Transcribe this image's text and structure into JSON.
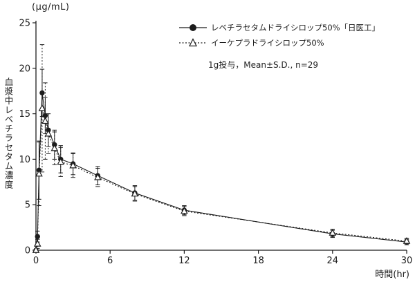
{
  "unit_label": "(μg/mL)",
  "x_axis": {
    "title": "時間(hr)"
  },
  "y_axis": {
    "title": "血漿中レベチラセタム濃度"
  },
  "legend": {
    "items": [
      {
        "label": "レベチラセタムドライシロップ50%「日医工」",
        "marker": "filled-circle",
        "line": "solid"
      },
      {
        "label": "イーケプラドライシロップ50%",
        "marker": "open-triangle",
        "line": "dotted"
      }
    ],
    "note": "1g投与，Mean±S.D., n=29"
  },
  "colors": {
    "ink": "#1c1c1c",
    "bg": "#ffffff"
  },
  "chart_data": {
    "type": "line",
    "title": "",
    "xlabel": "時間(hr)",
    "ylabel": "血漿中レベチラセタム濃度 (μg/mL)",
    "x": [
      0,
      0.125,
      0.25,
      0.5,
      0.75,
      1,
      1.5,
      2,
      3,
      5,
      8,
      12,
      24,
      30
    ],
    "xlim": [
      0,
      30
    ],
    "ylim": [
      0,
      25
    ],
    "xticks": [
      0,
      6,
      12,
      18,
      24,
      30
    ],
    "yticks": [
      0,
      5,
      10,
      15,
      20,
      25
    ],
    "grid": false,
    "legend_position": "top-center-inside",
    "annotation": "1g投与，Mean±S.D., n=29",
    "error_bars": "S.D.",
    "n": 29,
    "series": [
      {
        "name": "レベチラセタムドライシロップ50%「日医工」",
        "marker": "filled-circle",
        "line": "solid",
        "values": [
          0,
          1.5,
          8.8,
          17.3,
          14.8,
          13.2,
          11.6,
          10.0,
          9.5,
          8.2,
          6.3,
          4.4,
          1.8,
          0.9
        ],
        "sd": [
          0,
          0.6,
          3.2,
          2.6,
          2.0,
          1.8,
          1.6,
          1.5,
          1.2,
          1.0,
          0.8,
          0.5,
          0.4,
          0.3
        ]
      },
      {
        "name": "イーケプラドライシロップ50%",
        "marker": "open-triangle",
        "line": "dotted",
        "values": [
          0,
          0.7,
          8.4,
          15.6,
          14.2,
          12.8,
          11.2,
          9.7,
          9.3,
          8.0,
          6.2,
          4.3,
          1.9,
          1.0
        ],
        "sd": [
          0,
          0.5,
          3.5,
          7.0,
          4.2,
          2.2,
          1.8,
          1.6,
          1.3,
          1.0,
          0.8,
          0.5,
          0.4,
          0.3
        ]
      }
    ]
  }
}
